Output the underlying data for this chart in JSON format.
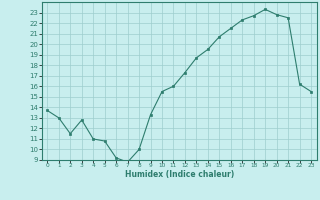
{
  "xlabel": "Humidex (Indice chaleur)",
  "ylabel": "",
  "x_values": [
    0,
    1,
    2,
    3,
    4,
    5,
    6,
    7,
    8,
    9,
    10,
    11,
    12,
    13,
    14,
    15,
    16,
    17,
    18,
    19,
    20,
    21,
    22,
    23
  ],
  "y_values": [
    13.7,
    13.0,
    11.5,
    12.8,
    11.0,
    10.8,
    9.2,
    8.8,
    10.0,
    13.3,
    15.5,
    16.0,
    17.3,
    18.7,
    19.5,
    20.7,
    21.5,
    22.3,
    22.7,
    23.3,
    22.8,
    22.5,
    16.2,
    15.5
  ],
  "line_color": "#2e7d6e",
  "marker_color": "#2e7d6e",
  "bg_color": "#c8eeee",
  "grid_color": "#9ecece",
  "axis_color": "#2e7d6e",
  "tick_color": "#2e7d6e",
  "xlim": [
    -0.5,
    23.5
  ],
  "ylim": [
    9,
    24
  ],
  "yticks": [
    9,
    10,
    11,
    12,
    13,
    14,
    15,
    16,
    17,
    18,
    19,
    20,
    21,
    22,
    23
  ],
  "xticks": [
    0,
    1,
    2,
    3,
    4,
    5,
    6,
    7,
    8,
    9,
    10,
    11,
    12,
    13,
    14,
    15,
    16,
    17,
    18,
    19,
    20,
    21,
    22,
    23
  ]
}
